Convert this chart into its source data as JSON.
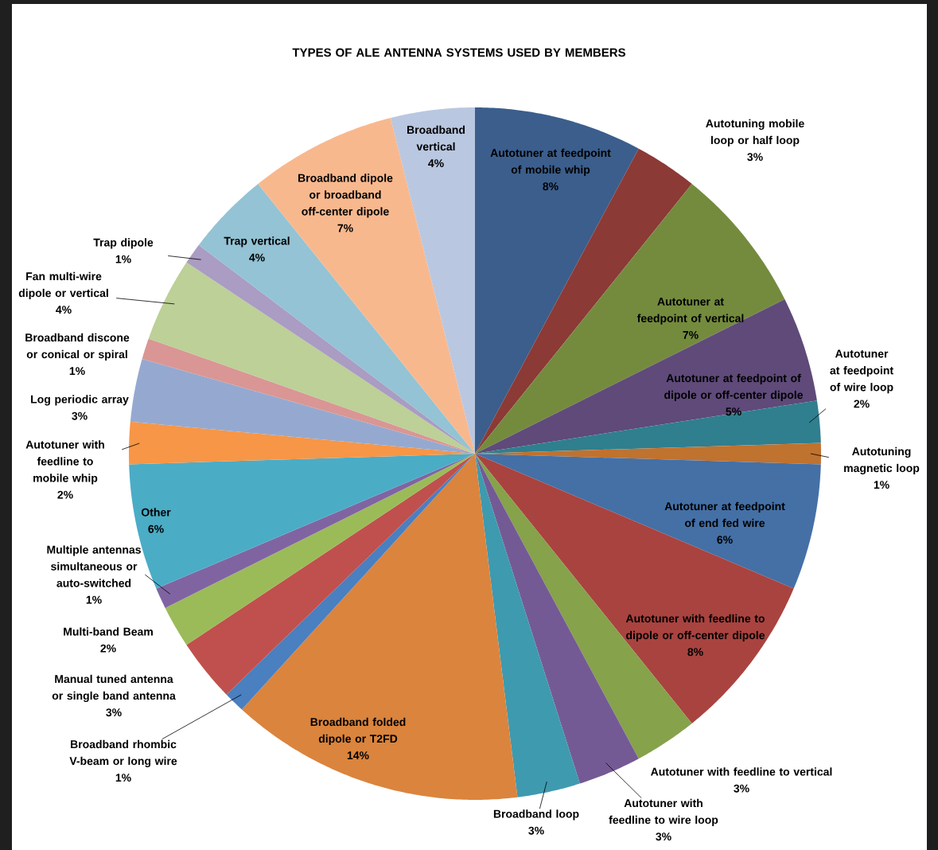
{
  "chart_data": {
    "type": "pie",
    "title": "TYPES OF ALE ANTENNA SYSTEMS USED BY MEMBERS",
    "categories": [
      "Autotuner at feedpoint of mobile whip",
      "Autotuning mobile loop or half loop",
      "Autotuner at feedpoint of vertical",
      "Autotuner at feedpoint of dipole or off-center dipole",
      "Autotuner at feedpoint of wire loop",
      "Autotuning magnetic loop",
      "Autotuner at feedpoint of end fed wire",
      "Autotuner with feedline to dipole or off-center dipole",
      "Autotuner with feedline to vertical",
      "Autotuner with feedline to wire loop",
      "Broadband loop",
      "Broadband folded dipole or T2FD",
      "Broadband rhombic V-beam or long wire",
      "Manual tuned antenna or single band antenna",
      "Multi-band Beam",
      "Multiple antennas simultaneous or auto-switched",
      "Other",
      "Autotuner with feedline to mobile whip",
      "Log periodic array",
      "Broadband discone or conical or spiral",
      "Fan multi-wire dipole or vertical",
      "Trap dipole",
      "Trap vertical",
      "Broadband dipole or broadband off-center dipole",
      "Broadband vertical"
    ],
    "values": [
      8,
      3,
      7,
      5,
      2,
      1,
      6,
      8,
      3,
      3,
      3,
      14,
      1,
      3,
      2,
      1,
      6,
      2,
      3,
      1,
      4,
      1,
      4,
      7,
      4
    ],
    "value_labels": [
      "8%",
      "3%",
      "7%",
      "5%",
      "2%",
      "1%",
      "6%",
      "8%",
      "3%",
      "3%",
      "3%",
      "14%",
      "1%",
      "3%",
      "2%",
      "1%",
      "6%",
      "2%",
      "3%",
      "1%",
      "4%",
      "1%",
      "4%",
      "7%",
      "4%"
    ],
    "colors": [
      "#3b5e8c",
      "#8b3a36",
      "#748b3e",
      "#5f4a7a",
      "#2f7f8f",
      "#c0722f",
      "#4470a6",
      "#a9433f",
      "#86a24a",
      "#745a94",
      "#3e9aaf",
      "#db843d",
      "#4a7fc0",
      "#c0504d",
      "#9bbb59",
      "#8064a2",
      "#4bacc6",
      "#f79646",
      "#95a9d0",
      "#d99694",
      "#bcd097",
      "#aa9cc2",
      "#93c3d4",
      "#f8b88e",
      "#b9c7e0"
    ]
  }
}
